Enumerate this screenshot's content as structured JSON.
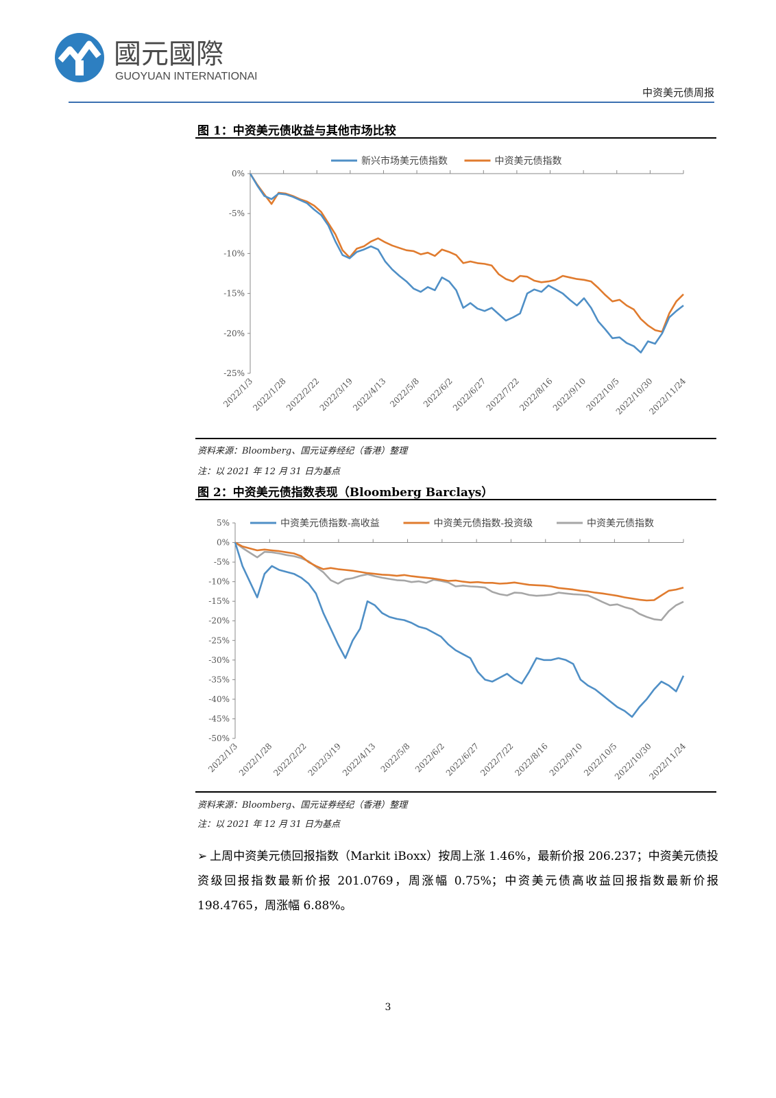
{
  "header": {
    "logo_cn": "國元國際",
    "logo_en": "GUOYUAN INTERNATIONAL",
    "report_name": "中资美元债周报"
  },
  "figure1": {
    "title": "图 1：中资美元债收益与其他市场比较",
    "source": "资料来源：Bloomberg、国元证券经纪（香港）整理",
    "note": "注：以 2021 年 12 月 31 日为基点"
  },
  "figure2": {
    "title": "图 2：中资美元债指数表现（Bloomberg Barclays）",
    "source": "资料来源：Bloomberg、国元证券经纪（香港）整理",
    "note": "注：以 2021 年 12 月 31 日为基点"
  },
  "body": {
    "bullet": "➢",
    "paragraph": "上周中资美元债回报指数（Markit iBoxx）按周上涨 1.46%，最新价报 206.237；中资美元债投资级回报指数最新价报 201.0769，周涨幅 0.75%；中资美元债高收益回报指数最新价报 198.4765，周涨幅 6.88%。"
  },
  "page_number": "3",
  "colors": {
    "blue": "#4f8fc6",
    "orange": "#e07b2e",
    "gray": "#a6a6a6",
    "header_rule": "#3a6fb0"
  },
  "chart_data": [
    {
      "type": "line",
      "x_ticks": [
        "2022/1/3",
        "2022/1/28",
        "2022/2/22",
        "2022/3/19",
        "2022/4/13",
        "2022/5/8",
        "2022/6/2",
        "2022/6/27",
        "2022/7/22",
        "2022/8/16",
        "2022/9/10",
        "2022/10/5",
        "2022/10/30",
        "2022/11/24"
      ],
      "y_ticks": [
        "0%",
        "-5%",
        "-10%",
        "-15%",
        "-20%",
        "-25%"
      ],
      "ylim": [
        -25,
        0
      ],
      "legend": "top",
      "series": [
        {
          "name": "新兴市场美元债指数",
          "color": "#4f8fc6",
          "values": [
            0,
            -1.5,
            -2.8,
            -3.2,
            -2.5,
            -2.6,
            -2.9,
            -3.3,
            -3.7,
            -4.5,
            -5.2,
            -6.5,
            -8.5,
            -10.2,
            -10.6,
            -9.8,
            -9.5,
            -9.1,
            -9.5,
            -11.0,
            -12.0,
            -12.8,
            -13.5,
            -14.4,
            -14.8,
            -14.2,
            -14.6,
            -13.0,
            -13.5,
            -14.6,
            -16.8,
            -16.2,
            -16.9,
            -17.2,
            -16.8,
            -17.6,
            -18.4,
            -18.0,
            -17.5,
            -15.0,
            -14.5,
            -14.8,
            -14.0,
            -14.5,
            -15.0,
            -15.8,
            -16.5,
            -15.6,
            -16.8,
            -18.5,
            -19.5,
            -20.6,
            -20.5,
            -21.2,
            -21.6,
            -22.4,
            -21.0,
            -21.3,
            -20.0,
            -18.0,
            -17.2,
            -16.5
          ]
        },
        {
          "name": "中资美元债指数",
          "color": "#e07b2e",
          "values": [
            0,
            -1.4,
            -2.6,
            -3.8,
            -2.4,
            -2.5,
            -2.8,
            -3.2,
            -3.5,
            -4.0,
            -4.8,
            -6.2,
            -7.6,
            -9.6,
            -10.5,
            -9.4,
            -9.1,
            -8.5,
            -8.1,
            -8.6,
            -9.0,
            -9.3,
            -9.6,
            -9.7,
            -10.1,
            -9.9,
            -10.3,
            -9.5,
            -9.8,
            -10.2,
            -11.2,
            -11.0,
            -11.2,
            -11.3,
            -11.5,
            -12.6,
            -13.2,
            -13.5,
            -12.8,
            -12.9,
            -13.4,
            -13.6,
            -13.5,
            -13.3,
            -12.8,
            -13.0,
            -13.2,
            -13.3,
            -13.5,
            -14.3,
            -15.2,
            -16.0,
            -15.8,
            -16.5,
            -17.0,
            -18.2,
            -19.0,
            -19.6,
            -19.8,
            -17.5,
            -16.0,
            -15.1
          ]
        }
      ]
    },
    {
      "type": "line",
      "x_ticks": [
        "2022/1/3",
        "2022/1/28",
        "2022/2/22",
        "2022/3/19",
        "2022/4/13",
        "2022/5/8",
        "2022/6/2",
        "2022/6/27",
        "2022/7/22",
        "2022/8/16",
        "2022/9/10",
        "2022/10/5",
        "2022/10/30",
        "2022/11/24"
      ],
      "y_ticks": [
        "5%",
        "0%",
        "-5%",
        "-10%",
        "-15%",
        "-20%",
        "-25%",
        "-30%",
        "-35%",
        "-40%",
        "-45%",
        "-50%"
      ],
      "ylim": [
        -50,
        5
      ],
      "legend": "top",
      "series": [
        {
          "name": "中资美元债指数-高收益",
          "color": "#4f8fc6",
          "values": [
            0,
            -6,
            -10,
            -14,
            -8,
            -6,
            -7,
            -7.5,
            -8,
            -9,
            -10.5,
            -13,
            -18,
            -22,
            -26,
            -29.5,
            -25,
            -22,
            -15,
            -16,
            -18,
            -19,
            -19.5,
            -19.8,
            -20.5,
            -21.5,
            -22,
            -23,
            -24,
            -26,
            -27.5,
            -28.5,
            -29.5,
            -33,
            -35,
            -35.5,
            -34.5,
            -33.5,
            -35,
            -36,
            -33,
            -29.5,
            -30,
            -30,
            -29.5,
            -30,
            -31,
            -35,
            -36.5,
            -37.5,
            -39,
            -40.5,
            -42,
            -43,
            -44.5,
            -42,
            -40,
            -37.5,
            -35.5,
            -36.5,
            -38,
            -34
          ]
        },
        {
          "name": "中资美元债指数-投资级",
          "color": "#e07b2e",
          "values": [
            0,
            -1,
            -1.5,
            -2,
            -1.8,
            -2,
            -2.2,
            -2.5,
            -2.8,
            -3.5,
            -5,
            -6,
            -6.8,
            -6.5,
            -6.8,
            -7,
            -7.2,
            -7.5,
            -7.8,
            -8,
            -8.2,
            -8.3,
            -8.5,
            -8.3,
            -8.6,
            -8.8,
            -9,
            -9.2,
            -9.5,
            -9.8,
            -9.7,
            -10,
            -10.2,
            -10.1,
            -10.3,
            -10.3,
            -10.5,
            -10.4,
            -10.2,
            -10.5,
            -10.8,
            -10.9,
            -11,
            -11.2,
            -11.6,
            -11.8,
            -12,
            -12.3,
            -12.5,
            -12.8,
            -13,
            -13.3,
            -13.6,
            -14,
            -14.3,
            -14.6,
            -14.8,
            -14.7,
            -13.5,
            -12.3,
            -12,
            -11.5
          ]
        },
        {
          "name": "中资美元债指数",
          "color": "#a6a6a6",
          "values": [
            0,
            -1.4,
            -2.6,
            -3.8,
            -2.4,
            -2.5,
            -2.8,
            -3.2,
            -3.5,
            -4.0,
            -4.8,
            -6.2,
            -7.6,
            -9.6,
            -10.5,
            -9.4,
            -9.1,
            -8.5,
            -8.1,
            -8.6,
            -9.0,
            -9.3,
            -9.6,
            -9.7,
            -10.1,
            -9.9,
            -10.3,
            -9.5,
            -9.8,
            -10.2,
            -11.2,
            -11.0,
            -11.2,
            -11.3,
            -11.5,
            -12.6,
            -13.2,
            -13.5,
            -12.8,
            -12.9,
            -13.4,
            -13.6,
            -13.5,
            -13.3,
            -12.8,
            -13.0,
            -13.2,
            -13.3,
            -13.5,
            -14.3,
            -15.2,
            -16.0,
            -15.8,
            -16.5,
            -17.0,
            -18.2,
            -19.0,
            -19.6,
            -19.8,
            -17.5,
            -16.0,
            -15.1
          ]
        }
      ]
    }
  ]
}
